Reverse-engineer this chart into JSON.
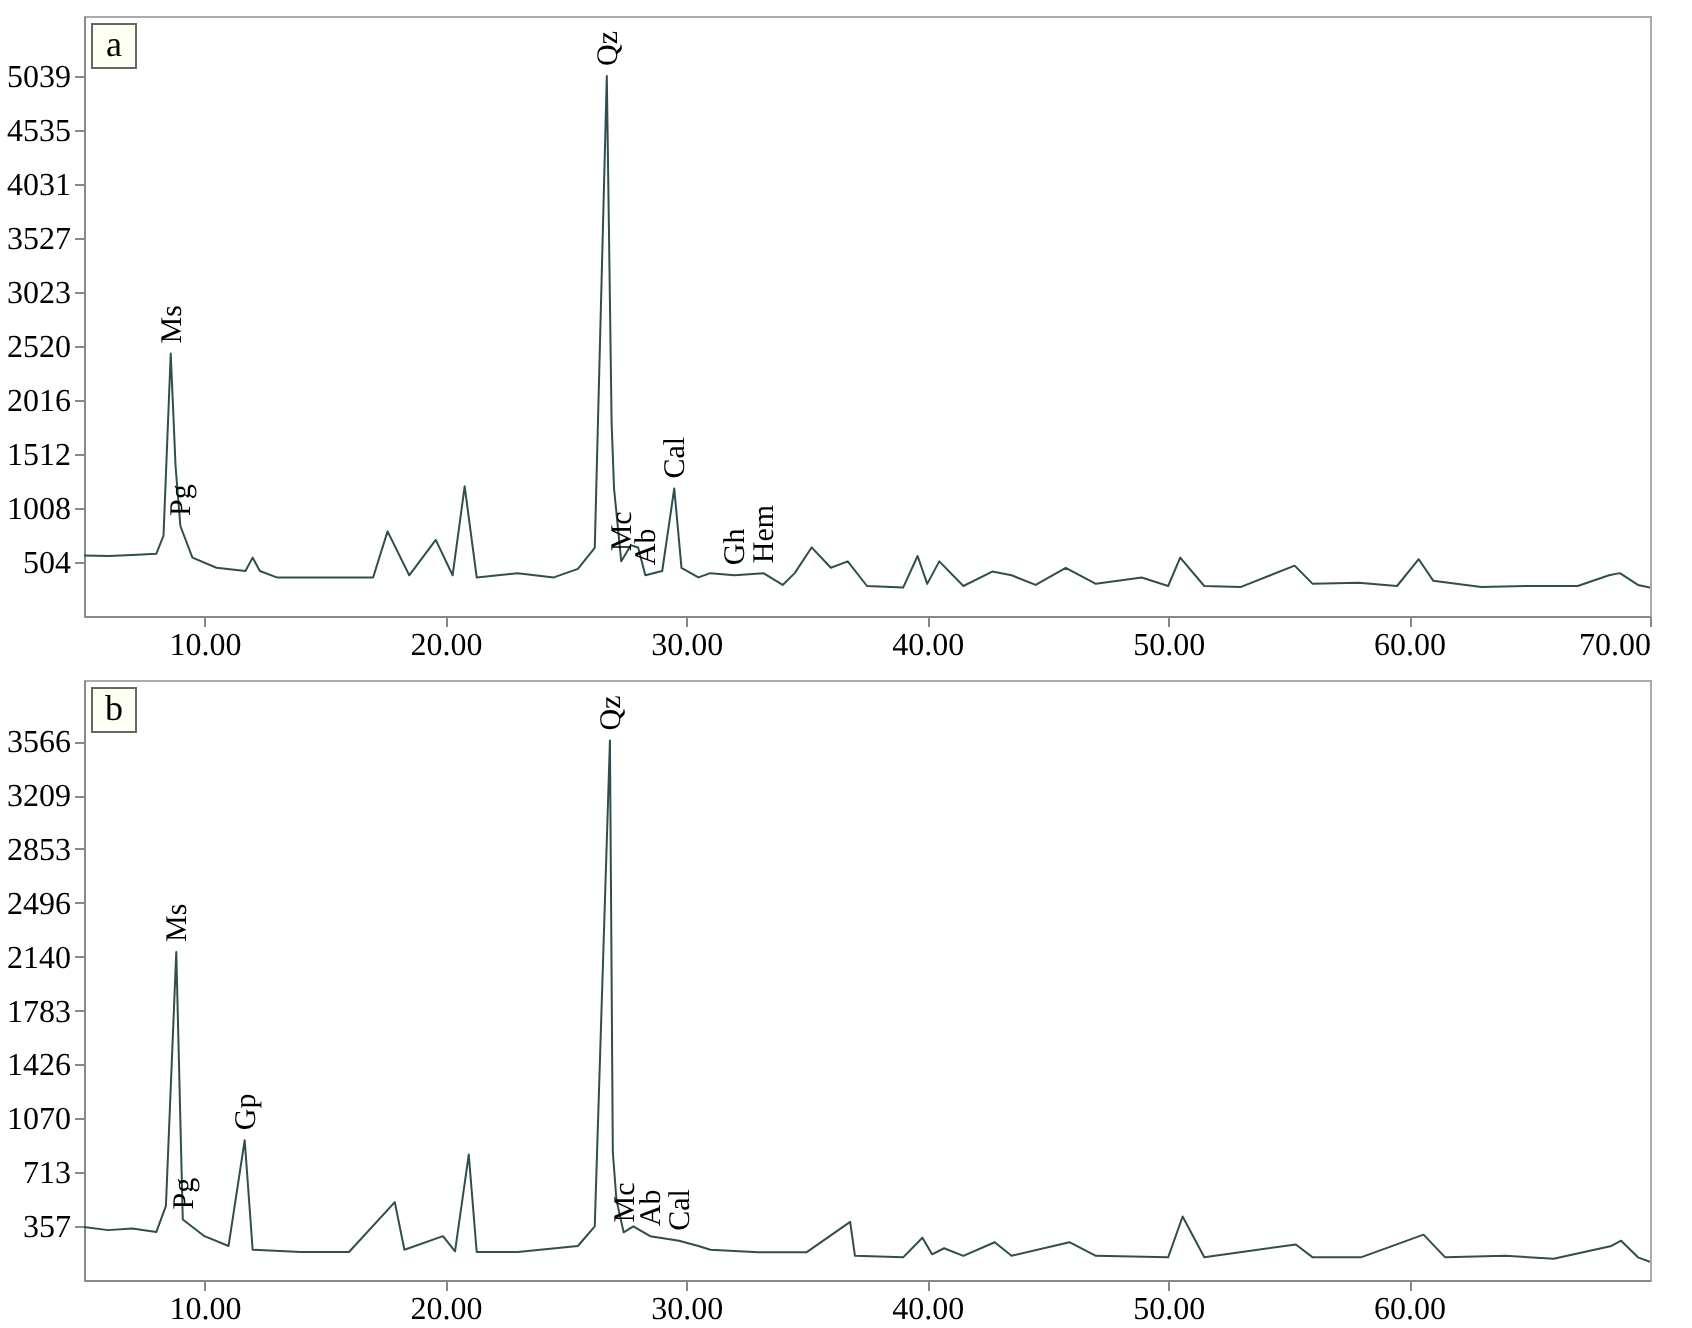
{
  "chart_data": [
    {
      "type": "line",
      "title": "a",
      "color": "#2f4f4f",
      "x": [
        5,
        6,
        7,
        8,
        8.3,
        8.6,
        8.8,
        9.0,
        9.5,
        10.5,
        11.7,
        12.0,
        12.3,
        13,
        15,
        17,
        17.6,
        18.5,
        19.6,
        20.3,
        20.8,
        21.3,
        23,
        24.5,
        25.5,
        26.2,
        26.7,
        26.9,
        27.0,
        27.3,
        27.7,
        28.0,
        28.3,
        29.0,
        29.5,
        29.8,
        30.5,
        31.0,
        32,
        33.2,
        34,
        34.5,
        35.2,
        36,
        36.7,
        37.5,
        39,
        39.6,
        40.0,
        40.5,
        41.5,
        42.7,
        43.5,
        44.5,
        45.75,
        47,
        48.9,
        50,
        50.5,
        51.5,
        53,
        55.25,
        56,
        57.9,
        59.5,
        60.4,
        61,
        63,
        65,
        67,
        68.3,
        68.75,
        69.5,
        70
      ],
      "values": [
        565,
        560,
        570,
        580,
        750,
        2450,
        1400,
        840,
        545,
        450,
        420,
        545,
        420,
        360,
        360,
        360,
        790,
        380,
        710,
        380,
        1210,
        360,
        400,
        360,
        440,
        635,
        5040,
        1800,
        1190,
        510,
        660,
        640,
        380,
        420,
        1190,
        450,
        360,
        400,
        380,
        400,
        290,
        400,
        640,
        450,
        510,
        280,
        265,
        560,
        300,
        510,
        280,
        415,
        380,
        290,
        450,
        300,
        360,
        280,
        545,
        280,
        270,
        470,
        300,
        310,
        280,
        530,
        330,
        270,
        280,
        280,
        380,
        400,
        290,
        265
      ],
      "xlim": [
        5,
        70
      ],
      "xticks": [
        {
          "value": 10,
          "label": "10.00"
        },
        {
          "value": 20,
          "label": "20.00"
        },
        {
          "value": 30,
          "label": "30.00"
        },
        {
          "value": 40,
          "label": "40.00"
        },
        {
          "value": 50,
          "label": "50.00"
        },
        {
          "value": 60,
          "label": "60.00"
        },
        {
          "value": 70,
          "label": "70.00"
        }
      ],
      "ylim": [
        0,
        5600
      ],
      "yticks": [
        504,
        1008,
        1512,
        2016,
        2520,
        3023,
        3527,
        4031,
        4535,
        5039
      ],
      "annotations": [
        {
          "text": "Ms",
          "x": 8.6,
          "y": 2450
        },
        {
          "text": "Pg",
          "x": 9.0,
          "y": 840
        },
        {
          "text": "Qz",
          "x": 26.7,
          "y": 5040
        },
        {
          "text": "Mc",
          "x": 27.3,
          "y": 510
        },
        {
          "text": "Ab",
          "x": 28.3,
          "y": 380
        },
        {
          "text": "Cal",
          "x": 29.5,
          "y": 1190
        },
        {
          "text": "Gh",
          "x": 32,
          "y": 380
        },
        {
          "text": "Hem",
          "x": 33.2,
          "y": 400
        }
      ]
    },
    {
      "type": "line",
      "title": "b",
      "color": "#2f4f4f",
      "x": [
        5,
        6,
        7,
        8,
        8.4,
        8.83,
        9.1,
        10,
        11,
        11.67,
        12,
        14,
        16,
        17.9,
        18.3,
        19.9,
        20.4,
        20.97,
        21.3,
        23,
        25.5,
        26.2,
        26.83,
        26.95,
        27.1,
        27.4,
        27.8,
        28.5,
        29.7,
        30.5,
        31,
        33,
        35,
        36.8,
        37,
        39,
        39.8,
        40.2,
        40.7,
        41.5,
        42.8,
        43.5,
        45.9,
        47,
        50,
        50.6,
        51.5,
        55.3,
        56,
        58,
        60.6,
        61.5,
        64,
        66,
        68.4,
        68.8,
        69.5,
        70
      ],
      "values": [
        350,
        330,
        340,
        317,
        490,
        2170,
        400,
        290,
        225,
        925,
        200,
        185,
        185,
        515,
        200,
        290,
        190,
        830,
        185,
        185,
        225,
        355,
        3570,
        845,
        530,
        315,
        355,
        290,
        260,
        225,
        200,
        184,
        184,
        385,
        160,
        150,
        280,
        170,
        210,
        160,
        250,
        160,
        250,
        160,
        150,
        420,
        150,
        235,
        150,
        150,
        300,
        150,
        160,
        140,
        225,
        260,
        150,
        120
      ],
      "xlim": [
        5,
        70
      ],
      "xticks": [
        {
          "value": 10,
          "label": "10.00"
        },
        {
          "value": 20,
          "label": "20.00"
        },
        {
          "value": 30,
          "label": "30.00"
        },
        {
          "value": 40,
          "label": "40.00"
        },
        {
          "value": 50,
          "label": "50.00"
        },
        {
          "value": 60,
          "label": "60.00"
        }
      ],
      "ylim": [
        0,
        3970
      ],
      "yticks": [
        357,
        713,
        1070,
        1426,
        1783,
        2140,
        2496,
        2853,
        3209,
        3566
      ],
      "annotations": [
        {
          "text": "Ms",
          "x": 8.83,
          "y": 2170
        },
        {
          "text": "Pg",
          "x": 9.1,
          "y": 400
        },
        {
          "text": "Gp",
          "x": 11.67,
          "y": 925
        },
        {
          "text": "Qz",
          "x": 26.83,
          "y": 3570
        },
        {
          "text": "Mc",
          "x": 27.4,
          "y": 315
        },
        {
          "text": "Ab",
          "x": 28.5,
          "y": 290
        },
        {
          "text": "Cal",
          "x": 29.7,
          "y": 260
        }
      ]
    }
  ]
}
